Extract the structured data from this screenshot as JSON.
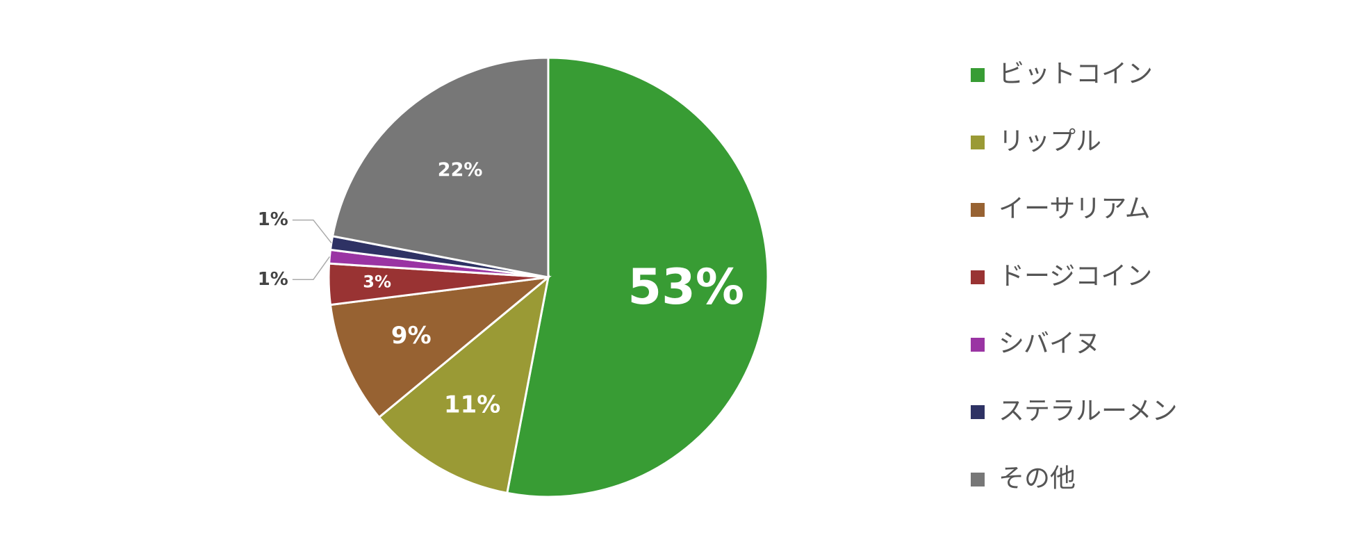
{
  "chart_data": {
    "type": "pie",
    "categories": [
      "ビットコイン",
      "リップル",
      "イーサリアム",
      "ドージコイン",
      "シバイヌ",
      "ステラルーメン",
      "その他"
    ],
    "values": [
      53,
      11,
      9,
      3,
      1,
      1,
      22
    ],
    "value_labels": [
      "53%",
      "11%",
      "9%",
      "3%",
      "1%",
      "1%",
      "22%"
    ],
    "colors": [
      "#389c34",
      "#9a9a35",
      "#976232",
      "#993333",
      "#9a34a3",
      "#2e3264",
      "#777777"
    ],
    "legend": "right"
  }
}
